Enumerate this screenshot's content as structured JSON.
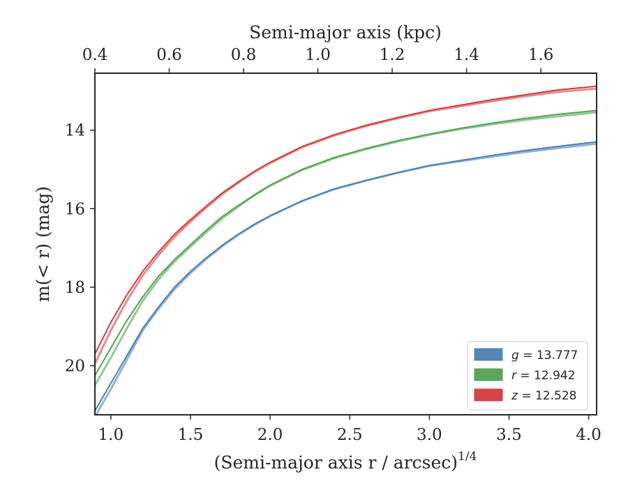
{
  "chart_data": {
    "type": "line",
    "xlabel_bottom": "(Semi-major axis r / arcsec)",
    "xlabel_bottom_exponent": "1/4",
    "xlabel_top": "Semi-major axis (kpc)",
    "ylabel": "m(< r) (mag)",
    "xlim": [
      0.9,
      4.05
    ],
    "ylim": [
      21.25,
      12.55
    ],
    "y_inverted": true,
    "x2lim": [
      0.4,
      1.75
    ],
    "x_ticks": [
      1.0,
      1.5,
      2.0,
      2.5,
      3.0,
      3.5,
      4.0
    ],
    "x_tick_labels": [
      "1.0",
      "1.5",
      "2.0",
      "2.5",
      "3.0",
      "3.5",
      "4.0"
    ],
    "x2_ticks": [
      0.4,
      0.6,
      0.8,
      1.0,
      1.2,
      1.4,
      1.6
    ],
    "x2_tick_labels": [
      "0.4",
      "0.6",
      "0.8",
      "1.0",
      "1.2",
      "1.4",
      "1.6"
    ],
    "y_ticks": [
      14,
      16,
      18,
      20
    ],
    "y_tick_labels": [
      "14",
      "16",
      "18",
      "20"
    ],
    "grid": false,
    "legend_position": "bottom-right",
    "series": [
      {
        "name": "g = 13.777",
        "symbol": "g",
        "value_text": "13.777",
        "color": "#4c7fb0",
        "light_color": "#8fb3d6",
        "x": [
          0.9,
          1.0,
          1.1,
          1.2,
          1.3,
          1.4,
          1.5,
          1.6,
          1.7,
          1.8,
          1.9,
          2.0,
          2.2,
          2.4,
          2.6,
          2.8,
          3.0,
          3.2,
          3.4,
          3.6,
          3.8,
          4.0,
          4.05
        ],
        "y": [
          21.15,
          20.45,
          19.75,
          19.05,
          18.5,
          18.0,
          17.6,
          17.25,
          16.93,
          16.65,
          16.4,
          16.18,
          15.8,
          15.5,
          15.28,
          15.08,
          14.9,
          14.77,
          14.64,
          14.52,
          14.42,
          14.32,
          14.3
        ],
        "y_band": [
          21.3,
          20.6,
          19.85,
          19.1,
          18.55,
          18.05,
          17.64,
          17.28,
          16.96,
          16.67,
          16.42,
          16.19,
          15.81,
          15.51,
          15.29,
          15.09,
          14.91,
          14.79,
          14.67,
          14.56,
          14.46,
          14.37,
          14.35
        ]
      },
      {
        "name": "r = 12.942",
        "symbol": "r",
        "value_text": "12.942",
        "color": "#55a055",
        "light_color": "#93c993",
        "x": [
          0.9,
          1.0,
          1.1,
          1.2,
          1.3,
          1.4,
          1.5,
          1.6,
          1.7,
          1.8,
          1.9,
          2.0,
          2.2,
          2.4,
          2.6,
          2.8,
          3.0,
          3.2,
          3.4,
          3.6,
          3.8,
          4.0,
          4.05
        ],
        "y": [
          20.25,
          19.55,
          18.85,
          18.25,
          17.72,
          17.3,
          16.92,
          16.55,
          16.2,
          15.92,
          15.65,
          15.4,
          15.0,
          14.7,
          14.47,
          14.27,
          14.1,
          13.95,
          13.82,
          13.7,
          13.6,
          13.52,
          13.5
        ],
        "y_band": [
          20.5,
          19.8,
          19.05,
          18.35,
          17.8,
          17.35,
          16.97,
          16.6,
          16.25,
          15.95,
          15.67,
          15.42,
          15.02,
          14.72,
          14.49,
          14.29,
          14.12,
          13.97,
          13.85,
          13.74,
          13.65,
          13.57,
          13.55
        ]
      },
      {
        "name": "z = 12.528",
        "symbol": "z",
        "value_text": "12.528",
        "color": "#d13b40",
        "light_color": "#e8898c",
        "x": [
          0.9,
          1.0,
          1.1,
          1.2,
          1.3,
          1.4,
          1.5,
          1.6,
          1.7,
          1.8,
          1.9,
          2.0,
          2.2,
          2.4,
          2.6,
          2.8,
          3.0,
          3.2,
          3.4,
          3.6,
          3.8,
          4.0,
          4.05
        ],
        "y": [
          19.7,
          18.9,
          18.2,
          17.6,
          17.1,
          16.65,
          16.28,
          15.93,
          15.6,
          15.32,
          15.05,
          14.82,
          14.42,
          14.12,
          13.88,
          13.68,
          13.5,
          13.36,
          13.22,
          13.1,
          12.98,
          12.9,
          12.88
        ],
        "y_band": [
          19.95,
          19.1,
          18.35,
          17.7,
          17.18,
          16.72,
          16.33,
          15.97,
          15.63,
          15.34,
          15.07,
          14.84,
          14.44,
          14.14,
          13.9,
          13.7,
          13.52,
          13.39,
          13.26,
          13.14,
          13.03,
          12.96,
          12.94
        ]
      }
    ]
  }
}
